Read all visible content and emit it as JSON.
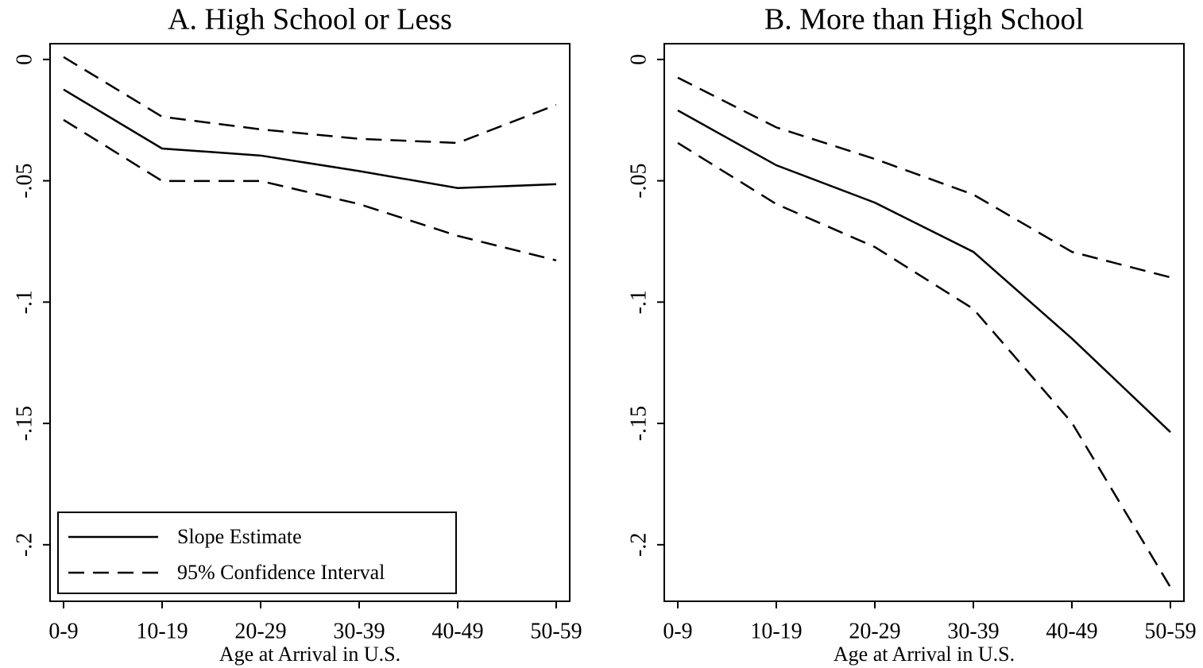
{
  "chart_data": [
    {
      "type": "line",
      "title": "A. High School or Less",
      "x_label": "Age at Arrival in U.S.",
      "categories": [
        "0-9",
        "10-19",
        "20-29",
        "30-39",
        "40-49",
        "50-59"
      ],
      "series": [
        {
          "name": "Slope Estimate",
          "color": "#000000",
          "values": [
            -0.0124,
            -0.0367,
            -0.0396,
            -0.046,
            -0.053,
            -0.0514
          ]
        },
        {
          "name": "95% Confidence Interval",
          "color": "#000000",
          "dashed": true,
          "upper": [
            0.001,
            -0.0236,
            -0.0288,
            -0.0327,
            -0.0344,
            -0.0187
          ],
          "lower": [
            -0.0249,
            -0.0501,
            -0.0501,
            -0.0596,
            -0.0727,
            -0.0828
          ]
        }
      ],
      "ylim": [
        -0.2233,
        0.0065
      ],
      "yticks": [
        0,
        {
          "value": -0.05,
          "label": "-.05"
        },
        {
          "value": -0.1,
          "label": "-.1"
        },
        {
          "value": -0.15,
          "label": "-.15"
        },
        {
          "value": -0.2,
          "label": "-.2"
        }
      ],
      "legend": "lower left"
    },
    {
      "type": "line",
      "title": "B. More than High School",
      "x_label": "Age at Arrival in U.S.",
      "categories": [
        "0-9",
        "10-19",
        "20-29",
        "30-39",
        "40-49",
        "50-59"
      ],
      "series": [
        {
          "name": "Slope Estimate",
          "color": "#000000",
          "values": [
            -0.021,
            -0.0436,
            -0.059,
            -0.0793,
            -0.115,
            -0.1536
          ]
        },
        {
          "name": "95% Confidence Interval",
          "color": "#000000",
          "dashed": true,
          "upper": [
            -0.0075,
            -0.028,
            -0.041,
            -0.0557,
            -0.0793,
            -0.0898
          ],
          "lower": [
            -0.0344,
            -0.0596,
            -0.0773,
            -0.1028,
            -0.1497,
            -0.2175
          ]
        }
      ],
      "ylim": [
        -0.2233,
        0.0065
      ],
      "yticks": [
        0,
        {
          "value": -0.05,
          "label": "-.05"
        },
        {
          "value": -0.1,
          "label": "-.1"
        },
        {
          "value": -0.15,
          "label": "-.15"
        },
        {
          "value": -0.2,
          "label": "-.2"
        }
      ]
    }
  ]
}
